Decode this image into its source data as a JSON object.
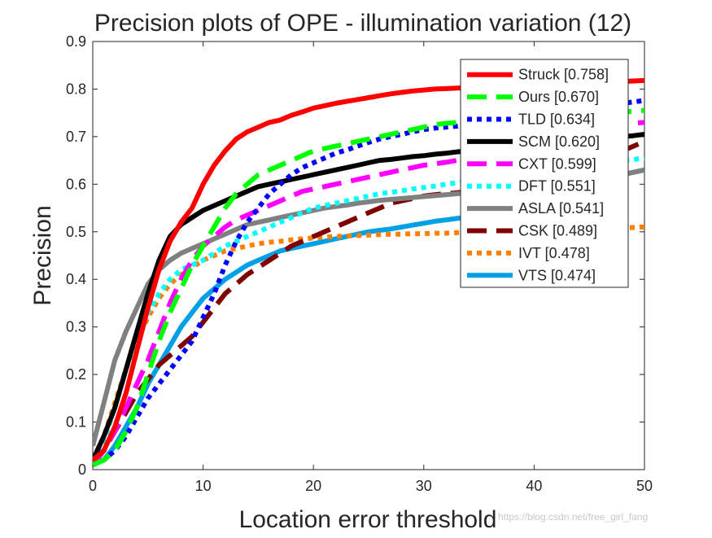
{
  "chart_data": {
    "type": "line",
    "title": "Precision plots of OPE - illumination variation (12)",
    "xlabel": "Location error threshold",
    "ylabel": "Precision",
    "xlim": [
      0,
      50
    ],
    "ylim": [
      0,
      0.9
    ],
    "xticks": [
      0,
      10,
      20,
      30,
      40,
      50
    ],
    "yticks": [
      0,
      0.1,
      0.2,
      0.3,
      0.4,
      0.5,
      0.6,
      0.7,
      0.8,
      0.9
    ],
    "grid": false,
    "legend_position": "top-right",
    "x": [
      0,
      1,
      2,
      3,
      4,
      5,
      6,
      7,
      8,
      9,
      10,
      11,
      12,
      13,
      14,
      15,
      16,
      17,
      18,
      19,
      20,
      21,
      22,
      23,
      24,
      25,
      26,
      27,
      28,
      29,
      30,
      31,
      32,
      33,
      34,
      35,
      36,
      37,
      38,
      39,
      40,
      41,
      42,
      43,
      44,
      45,
      46,
      47,
      48,
      49,
      50
    ],
    "series": [
      {
        "name": "Struck [0.758]",
        "color": "#ff0000",
        "dash": "solid",
        "values": [
          0.02,
          0.04,
          0.09,
          0.16,
          0.25,
          0.34,
          0.42,
          0.48,
          0.52,
          0.55,
          0.6,
          0.64,
          0.67,
          0.695,
          0.71,
          0.72,
          0.73,
          0.735,
          0.745,
          0.752,
          0.76,
          0.765,
          0.77,
          0.774,
          0.778,
          0.782,
          0.786,
          0.79,
          0.793,
          0.796,
          0.798,
          0.8,
          0.801,
          0.802,
          0.803,
          0.804,
          0.805,
          0.806,
          0.807,
          0.808,
          0.809,
          0.81,
          0.81,
          0.811,
          0.812,
          0.813,
          0.814,
          0.815,
          0.816,
          0.817,
          0.818
        ]
      },
      {
        "name": "Ours [0.670]",
        "color": "#00ff00",
        "dash": "long",
        "values": [
          0.01,
          0.02,
          0.04,
          0.08,
          0.13,
          0.2,
          0.27,
          0.33,
          0.38,
          0.43,
          0.47,
          0.51,
          0.55,
          0.58,
          0.6,
          0.62,
          0.63,
          0.64,
          0.65,
          0.66,
          0.67,
          0.675,
          0.68,
          0.685,
          0.69,
          0.695,
          0.7,
          0.705,
          0.71,
          0.715,
          0.72,
          0.725,
          0.728,
          0.73,
          0.732,
          0.734,
          0.736,
          0.738,
          0.74,
          0.742,
          0.744,
          0.745,
          0.746,
          0.747,
          0.748,
          0.749,
          0.75,
          0.751,
          0.752,
          0.753,
          0.755
        ]
      },
      {
        "name": "TLD [0.634]",
        "color": "#0000ff",
        "dash": "dot",
        "values": [
          0.01,
          0.02,
          0.04,
          0.07,
          0.11,
          0.15,
          0.18,
          0.21,
          0.24,
          0.27,
          0.32,
          0.37,
          0.43,
          0.48,
          0.52,
          0.55,
          0.58,
          0.6,
          0.62,
          0.635,
          0.645,
          0.655,
          0.665,
          0.672,
          0.68,
          0.688,
          0.695,
          0.7,
          0.705,
          0.71,
          0.715,
          0.718,
          0.72,
          0.722,
          0.725,
          0.728,
          0.73,
          0.735,
          0.74,
          0.745,
          0.75,
          0.752,
          0.755,
          0.758,
          0.76,
          0.762,
          0.765,
          0.768,
          0.77,
          0.773,
          0.776
        ]
      },
      {
        "name": "SCM [0.620]",
        "color": "#000000",
        "dash": "solid",
        "values": [
          0.02,
          0.07,
          0.13,
          0.21,
          0.29,
          0.37,
          0.44,
          0.49,
          0.515,
          0.53,
          0.545,
          0.555,
          0.565,
          0.575,
          0.585,
          0.595,
          0.6,
          0.605,
          0.61,
          0.615,
          0.62,
          0.625,
          0.63,
          0.635,
          0.64,
          0.645,
          0.65,
          0.652,
          0.655,
          0.658,
          0.66,
          0.663,
          0.665,
          0.668,
          0.67,
          0.672,
          0.675,
          0.677,
          0.68,
          0.682,
          0.684,
          0.686,
          0.688,
          0.69,
          0.692,
          0.694,
          0.696,
          0.698,
          0.7,
          0.702,
          0.705
        ]
      },
      {
        "name": "CXT [0.599]",
        "color": "#ff00ff",
        "dash": "long",
        "values": [
          0.01,
          0.04,
          0.08,
          0.13,
          0.18,
          0.23,
          0.29,
          0.35,
          0.4,
          0.44,
          0.47,
          0.49,
          0.51,
          0.525,
          0.535,
          0.545,
          0.555,
          0.565,
          0.575,
          0.585,
          0.59,
          0.595,
          0.6,
          0.605,
          0.61,
          0.615,
          0.62,
          0.625,
          0.63,
          0.635,
          0.64,
          0.643,
          0.646,
          0.65,
          0.655,
          0.66,
          0.665,
          0.67,
          0.675,
          0.68,
          0.685,
          0.69,
          0.695,
          0.7,
          0.705,
          0.71,
          0.715,
          0.72,
          0.725,
          0.728,
          0.73
        ]
      },
      {
        "name": "DFT [0.551]",
        "color": "#00ffff",
        "dash": "dot",
        "values": [
          0.02,
          0.06,
          0.13,
          0.21,
          0.28,
          0.33,
          0.37,
          0.4,
          0.42,
          0.43,
          0.44,
          0.455,
          0.47,
          0.48,
          0.49,
          0.5,
          0.51,
          0.52,
          0.53,
          0.54,
          0.55,
          0.555,
          0.56,
          0.565,
          0.57,
          0.575,
          0.58,
          0.583,
          0.586,
          0.59,
          0.593,
          0.596,
          0.6,
          0.603,
          0.606,
          0.61,
          0.613,
          0.616,
          0.62,
          0.623,
          0.626,
          0.63,
          0.633,
          0.636,
          0.64,
          0.643,
          0.646,
          0.648,
          0.65,
          0.652,
          0.655
        ]
      },
      {
        "name": "ASLA [0.541]",
        "color": "#808080",
        "dash": "solid",
        "values": [
          0.05,
          0.14,
          0.23,
          0.29,
          0.34,
          0.39,
          0.42,
          0.44,
          0.455,
          0.465,
          0.475,
          0.485,
          0.495,
          0.505,
          0.515,
          0.52,
          0.525,
          0.53,
          0.535,
          0.54,
          0.545,
          0.55,
          0.553,
          0.556,
          0.56,
          0.563,
          0.566,
          0.568,
          0.57,
          0.572,
          0.574,
          0.576,
          0.578,
          0.58,
          0.582,
          0.584,
          0.586,
          0.588,
          0.59,
          0.592,
          0.594,
          0.596,
          0.598,
          0.6,
          0.603,
          0.606,
          0.61,
          0.615,
          0.62,
          0.625,
          0.63
        ]
      },
      {
        "name": "CSK [0.489]",
        "color": "#800000",
        "dash": "long",
        "values": [
          0.01,
          0.04,
          0.08,
          0.12,
          0.16,
          0.19,
          0.22,
          0.24,
          0.26,
          0.28,
          0.31,
          0.34,
          0.37,
          0.39,
          0.41,
          0.425,
          0.44,
          0.455,
          0.47,
          0.48,
          0.49,
          0.5,
          0.51,
          0.52,
          0.53,
          0.54,
          0.55,
          0.56,
          0.565,
          0.57,
          0.575,
          0.578,
          0.58,
          0.582,
          0.585,
          0.588,
          0.59,
          0.595,
          0.6,
          0.605,
          0.61,
          0.615,
          0.62,
          0.625,
          0.63,
          0.64,
          0.65,
          0.66,
          0.67,
          0.68,
          0.69
        ]
      },
      {
        "name": "IVT [0.478]",
        "color": "#ff8000",
        "dash": "dot",
        "values": [
          0.02,
          0.07,
          0.14,
          0.21,
          0.27,
          0.32,
          0.36,
          0.39,
          0.41,
          0.425,
          0.44,
          0.45,
          0.46,
          0.465,
          0.47,
          0.475,
          0.478,
          0.48,
          0.483,
          0.485,
          0.487,
          0.489,
          0.49,
          0.491,
          0.492,
          0.493,
          0.494,
          0.495,
          0.495,
          0.496,
          0.496,
          0.497,
          0.497,
          0.498,
          0.498,
          0.499,
          0.499,
          0.5,
          0.5,
          0.501,
          0.501,
          0.502,
          0.503,
          0.504,
          0.505,
          0.505,
          0.506,
          0.507,
          0.508,
          0.509,
          0.51
        ]
      },
      {
        "name": "VTS [0.474]",
        "color": "#00a0e6",
        "dash": "solid",
        "values": [
          0.01,
          0.02,
          0.05,
          0.09,
          0.13,
          0.18,
          0.22,
          0.26,
          0.3,
          0.33,
          0.36,
          0.38,
          0.4,
          0.415,
          0.43,
          0.44,
          0.45,
          0.46,
          0.465,
          0.47,
          0.475,
          0.48,
          0.485,
          0.49,
          0.495,
          0.5,
          0.503,
          0.506,
          0.51,
          0.514,
          0.518,
          0.522,
          0.525,
          0.528,
          0.531,
          0.534,
          0.537,
          0.54,
          0.545,
          0.55,
          0.555,
          0.56,
          0.57,
          0.58,
          0.59,
          0.6,
          0.61,
          0.615,
          0.62,
          0.625,
          0.63
        ]
      }
    ]
  },
  "watermark": "https://blog.csdn.net/free_girl_fang"
}
